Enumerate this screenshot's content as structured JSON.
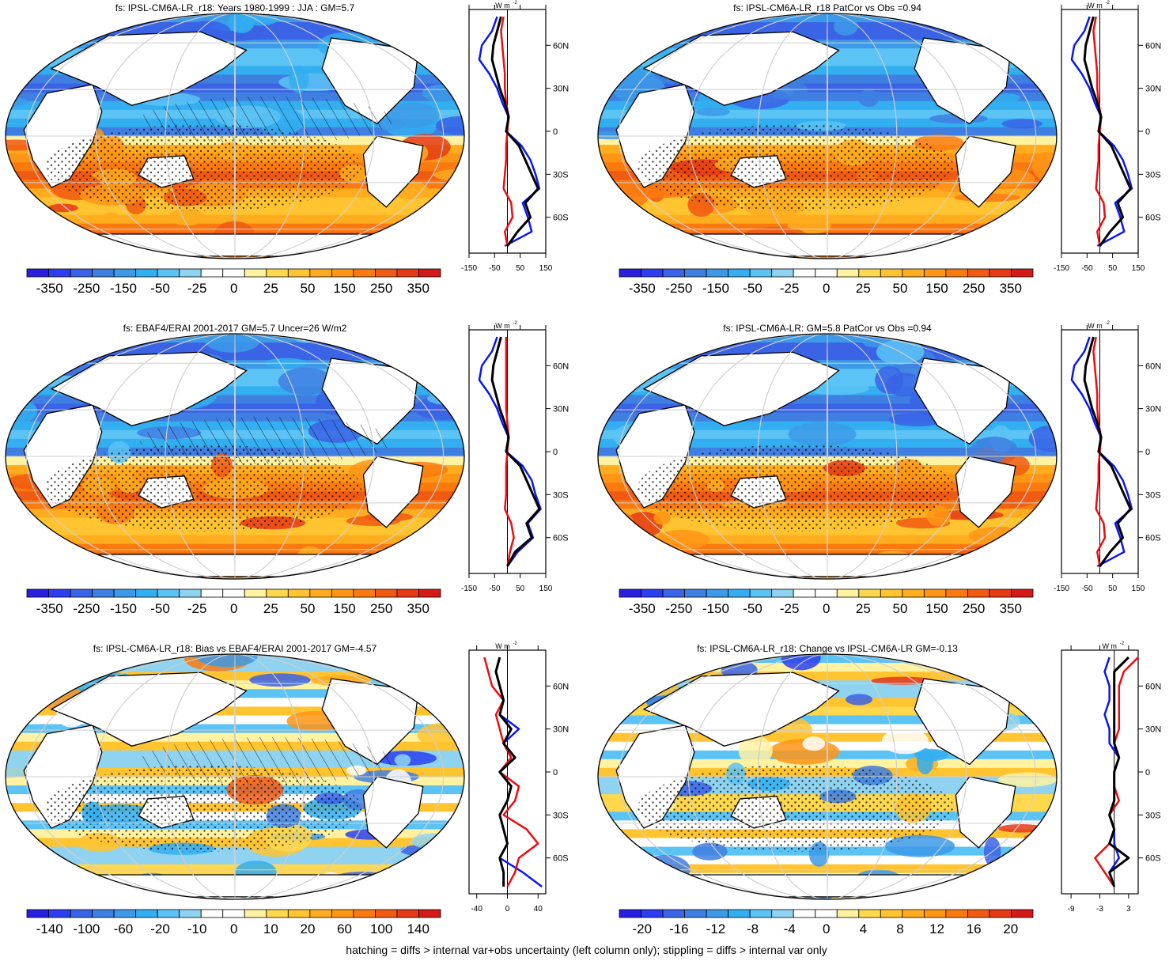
{
  "footnote": "hatching = diffs > internal var+obs uncertainty (left column only); stippling = diffs > internal var only",
  "colors": {
    "scale": [
      "#2a1ee0",
      "#2c3ff0",
      "#3a63e6",
      "#3f7fe2",
      "#3c9ae8",
      "#33aef0",
      "#5cc3f5",
      "#8fd3f0",
      "#ffffff",
      "#ffffff",
      "#fff2a0",
      "#ffd84d",
      "#ffc430",
      "#ffad1f",
      "#ff9515",
      "#fb7a10",
      "#f15a12",
      "#e53a14",
      "#d41a16"
    ],
    "model": "#0a16f0",
    "obs": "#ee0c10",
    "mean": "#000000",
    "land": "#ffffff"
  },
  "chart_data": [
    {
      "type": "heatmap",
      "title": "fs: IPSL-CM6A-LR_r18: Years 1980-1999 : JJA : GM=5.7",
      "colorbar_ticks": [
        "-350",
        "-250",
        "-150",
        "-50",
        "-25",
        "0",
        "25",
        "50",
        "150",
        "250",
        "350"
      ],
      "zonal_profile": {
        "type": "line",
        "unit_label": "W m",
        "unit_exp": "-2",
        "xlim": [
          -150,
          150
        ],
        "x_ticks": [
          "-150",
          "-50",
          "50",
          "150"
        ],
        "ylim": [
          -85,
          85
        ],
        "y_ticks": [
          "60N",
          "30N",
          "0",
          "30S",
          "60S"
        ],
        "lat": [
          -80,
          -70,
          -60,
          -50,
          -40,
          -30,
          -20,
          -10,
          0,
          10,
          20,
          30,
          40,
          50,
          60,
          70,
          80
        ],
        "black": [
          0,
          40,
          90,
          70,
          120,
          95,
          70,
          45,
          -5,
          5,
          -10,
          -30,
          -45,
          -60,
          -55,
          -40,
          -25
        ],
        "blue": [
          -10,
          95,
          80,
          60,
          125,
          110,
          90,
          55,
          -5,
          5,
          -20,
          -40,
          -70,
          -110,
          -100,
          -60,
          -40
        ],
        "red": [
          0,
          -10,
          20,
          15,
          -15,
          -10,
          -5,
          -5,
          0,
          5,
          -5,
          -10,
          -10,
          -15,
          -20,
          -25,
          -15
        ]
      }
    },
    {
      "type": "heatmap",
      "title": "fs: IPSL-CM6A-LR_r18 PatCor vs Obs =0.94",
      "colorbar_ticks": [
        "-350",
        "-250",
        "-150",
        "-50",
        "-25",
        "0",
        "25",
        "50",
        "150",
        "250",
        "350"
      ],
      "zonal_profile": {
        "type": "line",
        "unit_label": "W m",
        "unit_exp": "-2",
        "xlim": [
          -150,
          150
        ],
        "x_ticks": [
          "-150",
          "-50",
          "50",
          "150"
        ],
        "ylim": [
          -85,
          85
        ],
        "y_ticks": [
          "60N",
          "30N",
          "0",
          "30S",
          "60S"
        ],
        "lat": [
          -80,
          -70,
          -60,
          -50,
          -40,
          -30,
          -20,
          -10,
          0,
          10,
          20,
          30,
          40,
          50,
          60,
          70,
          80
        ],
        "black": [
          0,
          40,
          90,
          70,
          120,
          95,
          70,
          45,
          -5,
          5,
          -10,
          -30,
          -45,
          -60,
          -55,
          -40,
          -25
        ],
        "blue": [
          -10,
          95,
          80,
          60,
          125,
          110,
          90,
          55,
          -5,
          5,
          -20,
          -40,
          -70,
          -110,
          -100,
          -60,
          -40
        ],
        "red": [
          0,
          -10,
          20,
          15,
          -15,
          -10,
          -5,
          -5,
          0,
          5,
          -5,
          -10,
          -10,
          -15,
          -20,
          -25,
          -15
        ]
      }
    },
    {
      "type": "heatmap",
      "title": "fs: EBAF4/ERAI 2001-2017 GM=5.7 Uncer=26 W/m2",
      "colorbar_ticks": [
        "-350",
        "-250",
        "-150",
        "-50",
        "-25",
        "0",
        "25",
        "50",
        "150",
        "250",
        "350"
      ],
      "zonal_profile": {
        "type": "line",
        "unit_label": "W m",
        "unit_exp": "-2",
        "xlim": [
          -150,
          150
        ],
        "x_ticks": [
          "-150",
          "-50",
          "50",
          "150"
        ],
        "ylim": [
          -85,
          85
        ],
        "y_ticks": [
          "60N",
          "30N",
          "0",
          "30S",
          "60S"
        ],
        "lat": [
          -80,
          -70,
          -60,
          -50,
          -40,
          -30,
          -20,
          -10,
          0,
          10,
          20,
          30,
          40,
          50,
          60,
          70,
          80
        ],
        "black": [
          0,
          30,
          95,
          75,
          125,
          100,
          75,
          50,
          -5,
          5,
          -10,
          -30,
          -45,
          -60,
          -55,
          -40,
          -25
        ],
        "blue": [
          0,
          40,
          100,
          80,
          130,
          110,
          95,
          60,
          -5,
          5,
          -20,
          -40,
          -70,
          -110,
          -100,
          -60,
          -40
        ],
        "red": [
          0,
          10,
          25,
          15,
          -10,
          -5,
          -5,
          -5,
          0,
          5,
          0,
          -5,
          -5,
          -5,
          -5,
          -5,
          -5
        ]
      }
    },
    {
      "type": "heatmap",
      "title": "fs: IPSL-CM6A-LR: GM=5.8 PatCor vs Obs =0.94",
      "colorbar_ticks": [
        "-350",
        "-250",
        "-150",
        "-50",
        "-25",
        "0",
        "25",
        "50",
        "150",
        "250",
        "350"
      ],
      "zonal_profile": {
        "type": "line",
        "unit_label": "W m",
        "unit_exp": "-2",
        "xlim": [
          -150,
          150
        ],
        "x_ticks": [
          "-150",
          "-50",
          "50",
          "150"
        ],
        "ylim": [
          -85,
          85
        ],
        "y_ticks": [
          "60N",
          "30N",
          "0",
          "30S",
          "60S"
        ],
        "lat": [
          -80,
          -70,
          -60,
          -50,
          -40,
          -30,
          -20,
          -10,
          0,
          10,
          20,
          30,
          40,
          50,
          60,
          70,
          80
        ],
        "black": [
          0,
          40,
          90,
          70,
          120,
          95,
          70,
          45,
          -5,
          5,
          -10,
          -30,
          -45,
          -60,
          -55,
          -40,
          -25
        ],
        "blue": [
          -10,
          95,
          80,
          60,
          125,
          110,
          90,
          55,
          -5,
          5,
          -20,
          -40,
          -70,
          -110,
          -100,
          -60,
          -40
        ],
        "red": [
          0,
          -10,
          20,
          15,
          -15,
          -10,
          -5,
          -5,
          0,
          5,
          -5,
          -10,
          -10,
          -15,
          -20,
          -25,
          -15
        ]
      }
    },
    {
      "type": "heatmap",
      "title": "fs: IPSL-CM6A-LR_r18: Bias vs EBAF4/ERAI 2001-2017 GM=-4.57",
      "colorbar_ticks": [
        "-140",
        "-100",
        "-60",
        "-20",
        "-10",
        "0",
        "10",
        "20",
        "60",
        "100",
        "140"
      ],
      "zonal_profile": {
        "type": "line",
        "unit_label": "W m",
        "unit_exp": "-2",
        "xlim": [
          -50,
          50
        ],
        "x_ticks": [
          "-40",
          "0",
          "40"
        ],
        "ylim": [
          -85,
          85
        ],
        "y_ticks": [
          "60N",
          "30N",
          "0",
          "30S",
          "60S"
        ],
        "lat": [
          -80,
          -70,
          -60,
          -50,
          -40,
          -30,
          -20,
          -10,
          0,
          10,
          20,
          30,
          40,
          50,
          60,
          70,
          80
        ],
        "black": [
          -5,
          -5,
          -10,
          0,
          -5,
          -10,
          0,
          5,
          -10,
          10,
          -5,
          5,
          -10,
          -5,
          -10,
          -15,
          -10
        ],
        "blue": [
          45,
          20,
          -10,
          0,
          -5,
          -10,
          0,
          5,
          -10,
          5,
          -5,
          15,
          -10,
          -5,
          -10,
          -15,
          -10
        ],
        "red": [
          0,
          10,
          15,
          40,
          25,
          -5,
          10,
          15,
          -10,
          5,
          -5,
          -10,
          -15,
          -5,
          -20,
          -25,
          -30
        ]
      }
    },
    {
      "type": "heatmap",
      "title": "fs: IPSL-CM6A-LR_r18: Change vs IPSL-CM6A-LR GM=-0.13",
      "colorbar_ticks": [
        "-20",
        "-16",
        "-12",
        "-8",
        "-4",
        "0",
        "4",
        "8",
        "12",
        "16",
        "20"
      ],
      "zonal_profile": {
        "type": "line",
        "unit_label": "W m",
        "unit_exp": "-2",
        "xlim": [
          -11,
          5
        ],
        "x_ticks": [
          "-9",
          "-3",
          "3"
        ],
        "ylim": [
          -85,
          85
        ],
        "y_ticks": [
          "60N",
          "30N",
          "0",
          "30S",
          "60S"
        ],
        "lat": [
          -80,
          -70,
          -60,
          -50,
          -40,
          -30,
          -20,
          -10,
          0,
          10,
          20,
          30,
          40,
          50,
          60,
          70,
          80
        ],
        "black": [
          0,
          -1,
          3,
          -1,
          0,
          -1,
          0,
          0,
          0,
          1,
          0,
          0,
          0,
          0,
          0,
          0,
          3
        ],
        "blue": [
          0,
          -1,
          1,
          0,
          0,
          -1,
          0,
          0,
          0,
          1,
          -1,
          -1,
          -2,
          -1,
          -1,
          -2,
          -1
        ],
        "red": [
          0,
          -2,
          -4,
          -1,
          0,
          -1,
          1,
          0,
          0,
          1,
          0,
          1,
          1,
          1,
          1,
          2,
          5
        ]
      }
    }
  ]
}
